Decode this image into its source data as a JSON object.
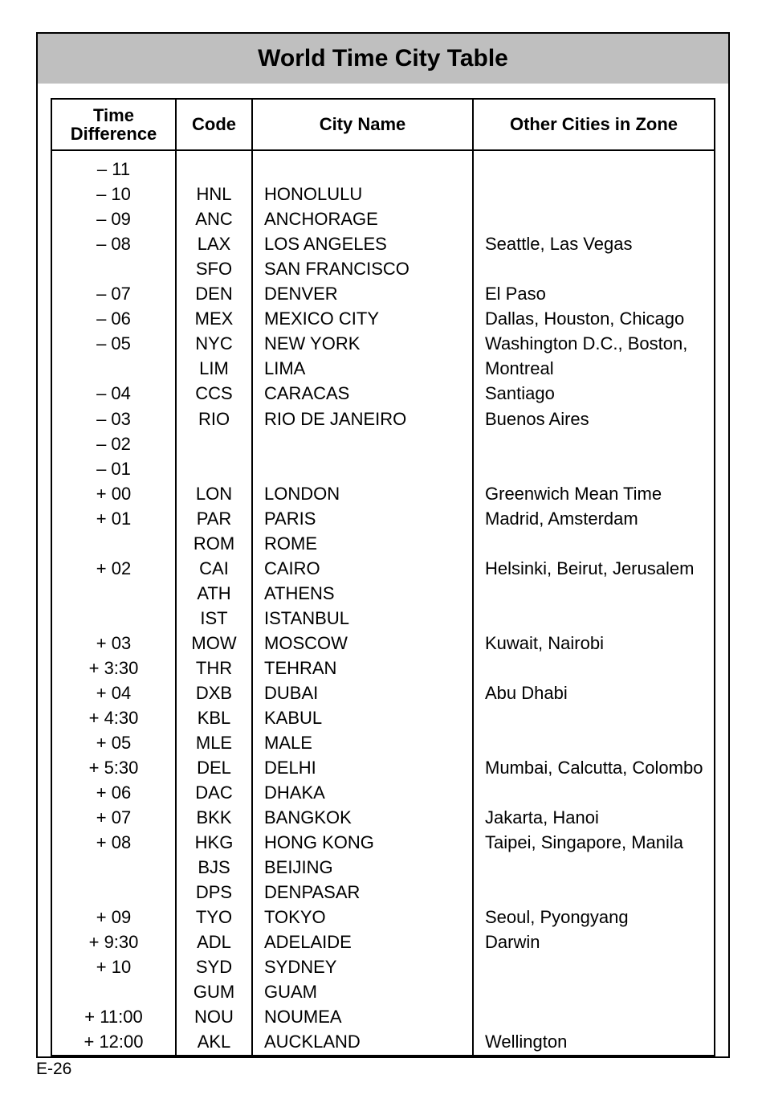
{
  "title": "World Time City Table",
  "page_number": "E-26",
  "columns": {
    "time": "Time\nDifference",
    "code": "Code",
    "city": "City Name",
    "other": "Other Cities in Zone"
  },
  "layout": {
    "title_bg": "#bfbfbf",
    "border_color": "#000000",
    "font_family": "Arial, Helvetica, sans-serif",
    "title_fontsize": 30,
    "header_fontsize": 22,
    "cell_fontsize": 22
  },
  "rows": [
    {
      "time": "– 11",
      "code": "",
      "city": "",
      "other": ""
    },
    {
      "time": "– 10",
      "code": "HNL",
      "city": "HONOLULU",
      "other": ""
    },
    {
      "time": "– 09",
      "code": "ANC",
      "city": "ANCHORAGE",
      "other": ""
    },
    {
      "time": "– 08",
      "code": "LAX",
      "city": "LOS ANGELES",
      "other": "Seattle, Las Vegas"
    },
    {
      "time": "",
      "code": "SFO",
      "city": "SAN FRANCISCO",
      "other": ""
    },
    {
      "time": "– 07",
      "code": "DEN",
      "city": "DENVER",
      "other": "El Paso"
    },
    {
      "time": "– 06",
      "code": "MEX",
      "city": "MEXICO CITY",
      "other": "Dallas, Houston, Chicago"
    },
    {
      "time": "– 05",
      "code": "NYC",
      "city": "NEW YORK",
      "other": "Washington D.C., Boston,"
    },
    {
      "time": "",
      "code": "LIM",
      "city": "LIMA",
      "other": "Montreal"
    },
    {
      "time": "– 04",
      "code": "CCS",
      "city": "CARACAS",
      "other": "Santiago"
    },
    {
      "time": "– 03",
      "code": "RIO",
      "city": "RIO DE JANEIRO",
      "other": "Buenos Aires"
    },
    {
      "time": "– 02",
      "code": "",
      "city": "",
      "other": ""
    },
    {
      "time": "– 01",
      "code": "",
      "city": "",
      "other": ""
    },
    {
      "time": "+ 00",
      "code": "LON",
      "city": "LONDON",
      "other": "Greenwich Mean Time"
    },
    {
      "time": "+ 01",
      "code": "PAR",
      "city": "PARIS",
      "other": "Madrid, Amsterdam"
    },
    {
      "time": "",
      "code": "ROM",
      "city": "ROME",
      "other": ""
    },
    {
      "time": "+ 02",
      "code": "CAI",
      "city": "CAIRO",
      "other": "Helsinki, Beirut, Jerusalem"
    },
    {
      "time": "",
      "code": "ATH",
      "city": "ATHENS",
      "other": ""
    },
    {
      "time": "",
      "code": "IST",
      "city": "ISTANBUL",
      "other": ""
    },
    {
      "time": "+ 03",
      "code": "MOW",
      "city": "MOSCOW",
      "other": "Kuwait, Nairobi"
    },
    {
      "time": "+ 3:30",
      "code": "THR",
      "city": "TEHRAN",
      "other": ""
    },
    {
      "time": "+ 04",
      "code": "DXB",
      "city": "DUBAI",
      "other": "Abu Dhabi"
    },
    {
      "time": "+ 4:30",
      "code": "KBL",
      "city": "KABUL",
      "other": ""
    },
    {
      "time": "+ 05",
      "code": "MLE",
      "city": "MALE",
      "other": ""
    },
    {
      "time": "+ 5:30",
      "code": "DEL",
      "city": "DELHI",
      "other": "Mumbai, Calcutta, Colombo"
    },
    {
      "time": "+ 06",
      "code": "DAC",
      "city": "DHAKA",
      "other": ""
    },
    {
      "time": "+ 07",
      "code": "BKK",
      "city": "BANGKOK",
      "other": "Jakarta, Hanoi"
    },
    {
      "time": "+ 08",
      "code": "HKG",
      "city": "HONG KONG",
      "other": "Taipei, Singapore, Manila"
    },
    {
      "time": "",
      "code": "BJS",
      "city": "BEIJING",
      "other": ""
    },
    {
      "time": "",
      "code": "DPS",
      "city": "DENPASAR",
      "other": ""
    },
    {
      "time": "+ 09",
      "code": "TYO",
      "city": "TOKYO",
      "other": "Seoul, Pyongyang"
    },
    {
      "time": "+ 9:30",
      "code": "ADL",
      "city": "ADELAIDE",
      "other": "Darwin"
    },
    {
      "time": "+ 10",
      "code": "SYD",
      "city": "SYDNEY",
      "other": ""
    },
    {
      "time": "",
      "code": "GUM",
      "city": "GUAM",
      "other": ""
    },
    {
      "time": "+ 11:00",
      "code": "NOU",
      "city": "NOUMEA",
      "other": ""
    },
    {
      "time": "+ 12:00",
      "code": "AKL",
      "city": "AUCKLAND",
      "other": "Wellington"
    }
  ]
}
